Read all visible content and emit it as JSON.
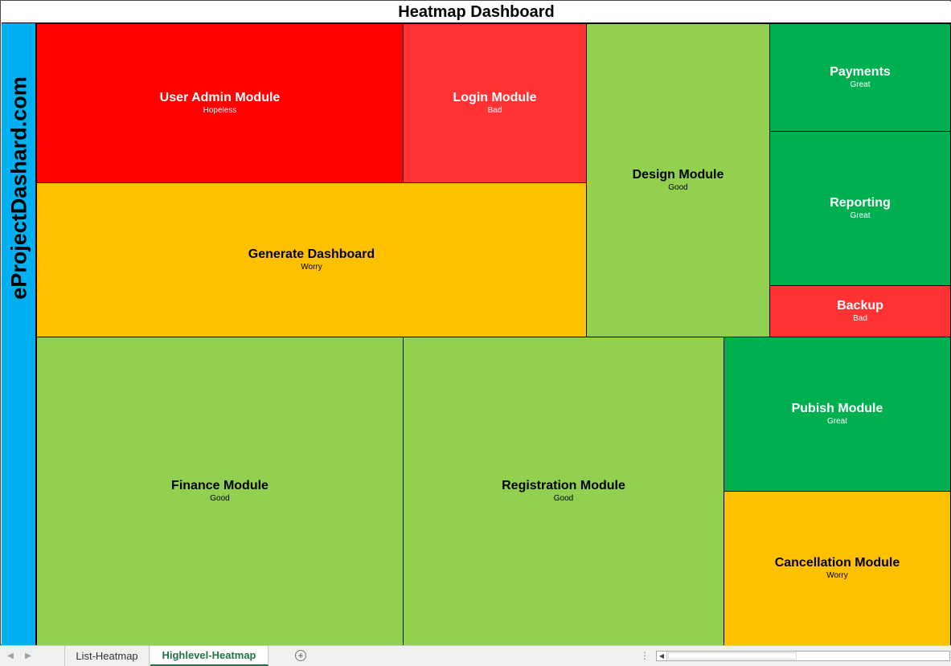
{
  "title": "Heatmap Dashboard",
  "brand": "eProjectDashard.com",
  "colors": {
    "hopeless": "#ff0000",
    "bad": "#ff3333",
    "worry": "#ffc000",
    "good": "#92d050",
    "great": "#00b050",
    "brand_bar": "#00b0f0"
  },
  "tiles": [
    {
      "id": "user-admin-module",
      "name": "User Admin Module",
      "status": "Hopeless"
    },
    {
      "id": "login-module",
      "name": "Login Module",
      "status": "Bad"
    },
    {
      "id": "design-module",
      "name": "Design Module",
      "status": "Good"
    },
    {
      "id": "payments",
      "name": "Payments",
      "status": "Great"
    },
    {
      "id": "reporting",
      "name": "Reporting",
      "status": "Great"
    },
    {
      "id": "backup",
      "name": "Backup",
      "status": "Bad"
    },
    {
      "id": "generate-dashboard",
      "name": "Generate Dashboard",
      "status": "Worry"
    },
    {
      "id": "finance-module",
      "name": "Finance Module",
      "status": "Good"
    },
    {
      "id": "registration-module",
      "name": "Registration Module",
      "status": "Good"
    },
    {
      "id": "pubish-module",
      "name": "Pubish Module",
      "status": "Great"
    },
    {
      "id": "cancellation-module",
      "name": "Cancellation Module",
      "status": "Worry"
    }
  ],
  "sheet_tabs": [
    {
      "label": "List-Heatmap",
      "active": false
    },
    {
      "label": "Highlevel-Heatmap",
      "active": true
    }
  ],
  "add_sheet_icon": "plus-circle-icon"
}
